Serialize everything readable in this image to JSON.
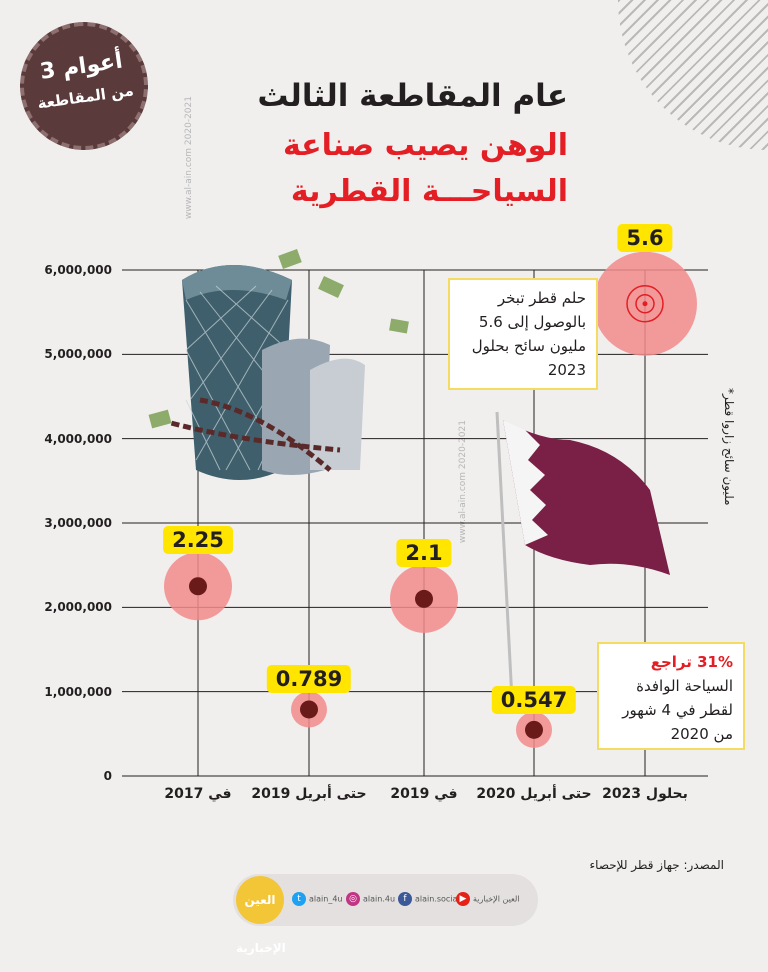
{
  "badge": {
    "line1": "3 أعوام",
    "line2": "من المقاطعة"
  },
  "headline": {
    "line1": "عام المقاطعة الثالث",
    "line2": "الوهن يصيب صناعة",
    "line3": "السياحـــة القطرية"
  },
  "watermark": "www.al-ain.com 2020-2021",
  "colors": {
    "accent": "#e31e24",
    "highlight": "#ffe500",
    "marker": "#6b1a1a",
    "halo": "#f28b8b",
    "flag": "#7a1f45"
  },
  "chart_data": {
    "type": "scatter",
    "categories": [
      "في 2017",
      "حتى أبريل 2019",
      "في 2019",
      "حتى أبريل 2020",
      "بحلول 2023"
    ],
    "values": [
      2250000,
      789000,
      2100000,
      547000,
      5600000
    ],
    "value_labels": [
      "2.25",
      "0.789",
      "2.1",
      "0.547",
      "5.6"
    ],
    "y_ticks": [
      "0",
      "1,000,000",
      "2,000,000",
      "3,000,000",
      "4,000,000",
      "5,000,000",
      "6,000,000"
    ],
    "ylim": [
      0,
      6000000
    ],
    "ylabel": "*مليون سائح زاروا قطر",
    "grid": true
  },
  "notes": {
    "target": "حلم قطر تبخر بالوصول إلى 5.6 مليون سائح بحلول 2023",
    "drop_highlight": "31% تراجع",
    "drop_text": "السياحة الوافدة لقطر في 4 شهور من 2020"
  },
  "source": "المصدر: جهاز قطر للإحصاء",
  "footer": {
    "logo": "العين الإخبارية",
    "items": [
      {
        "icon": "twitter-icon",
        "label": "alain_4u"
      },
      {
        "icon": "instagram-icon",
        "label": "alain.4u"
      },
      {
        "icon": "facebook-icon",
        "label": "alain.social"
      },
      {
        "icon": "youtube-icon",
        "label": "العين الإخبارية"
      }
    ]
  }
}
